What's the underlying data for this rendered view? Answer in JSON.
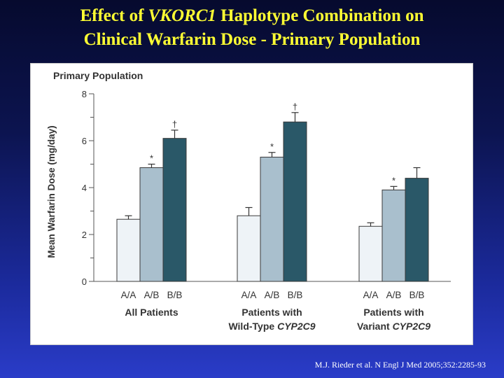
{
  "slide": {
    "title_line1_prefix": "Effect of ",
    "title_line1_italic": "VKORC1",
    "title_line1_suffix": " Haplotype Combination on",
    "title_line2": "Clinical Warfarin Dose - Primary Population",
    "citation": "M.J. Rieder et al. N Engl J Med 2005;352:2285-93"
  },
  "chart_data": {
    "type": "bar",
    "title": "Primary Population",
    "ylabel": "Mean Warfarin Dose (mg/day)",
    "ylim": [
      0,
      8
    ],
    "yticks": [
      "0",
      "2",
      "4",
      "6",
      "8"
    ],
    "groups": [
      {
        "label_line1": "All Patients",
        "label_line2_prefix": "",
        "label_line2_italic": ""
      },
      {
        "label_line1": "Patients with",
        "label_line2_prefix": "Wild-Type ",
        "label_line2_italic": "CYP2C9"
      },
      {
        "label_line1": "Patients with",
        "label_line2_prefix": "Variant ",
        "label_line2_italic": "CYP2C9"
      }
    ],
    "categories": [
      "A/A",
      "A/B",
      "B/B"
    ],
    "series": [
      {
        "values": [
          2.65,
          2.8,
          2.35
        ],
        "errors": [
          0.15,
          0.35,
          0.15
        ],
        "color": "#eef3f7",
        "markers": [
          "",
          "",
          ""
        ]
      },
      {
        "values": [
          4.85,
          5.3,
          3.9
        ],
        "errors": [
          0.15,
          0.2,
          0.15
        ],
        "color": "#a9bfcd",
        "markers": [
          "*",
          "*",
          "*"
        ]
      },
      {
        "values": [
          6.1,
          6.8,
          4.4
        ],
        "errors": [
          0.35,
          0.4,
          0.45
        ],
        "color": "#2a5868",
        "markers": [
          "†",
          "†",
          ""
        ]
      }
    ]
  }
}
